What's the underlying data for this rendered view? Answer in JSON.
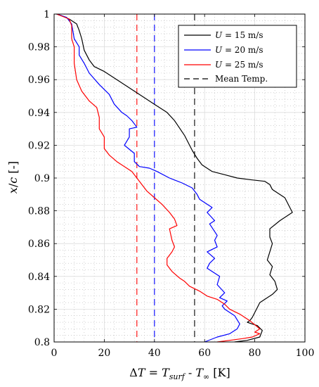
{
  "chart_data": {
    "type": "line",
    "xlabel": "ΔT = T_surf - T_∞ [K]",
    "ylabel": "x/c [-]",
    "xlim": [
      0,
      100
    ],
    "ylim": [
      0.8,
      1.0
    ],
    "xticks": [
      0,
      20,
      40,
      60,
      80,
      100
    ],
    "yticks": [
      0.8,
      0.82,
      0.84,
      0.86,
      0.88,
      0.9,
      0.92,
      0.94,
      0.96,
      0.98,
      1.0
    ],
    "xtick_labels": [
      "0",
      "20",
      "40",
      "60",
      "80",
      "100"
    ],
    "ytick_labels": [
      "0.8",
      "0.82",
      "0.84",
      "0.86",
      "0.88",
      "0.9",
      "0.92",
      "0.94",
      "0.96",
      "0.98",
      "1"
    ],
    "grid": true,
    "minor_grid": true,
    "legend_position": "top-right",
    "series": [
      {
        "name": "U = 15 m/s",
        "color": "#000000",
        "points": [
          [
            1,
            1.0
          ],
          [
            3,
            0.999
          ],
          [
            6,
            0.997
          ],
          [
            9,
            0.994
          ],
          [
            10,
            0.99
          ],
          [
            11,
            0.985
          ],
          [
            12,
            0.978
          ],
          [
            14,
            0.972
          ],
          [
            16,
            0.968
          ],
          [
            20,
            0.965
          ],
          [
            25,
            0.96
          ],
          [
            30,
            0.955
          ],
          [
            35,
            0.95
          ],
          [
            40,
            0.945
          ],
          [
            45,
            0.94
          ],
          [
            48,
            0.935
          ],
          [
            52,
            0.926
          ],
          [
            55,
            0.917
          ],
          [
            57,
            0.912
          ],
          [
            59,
            0.908
          ],
          [
            63,
            0.904
          ],
          [
            68,
            0.902
          ],
          [
            73,
            0.9
          ],
          [
            78,
            0.899
          ],
          [
            84,
            0.898
          ],
          [
            86,
            0.896
          ],
          [
            87,
            0.893
          ],
          [
            89,
            0.891
          ],
          [
            92,
            0.888
          ],
          [
            95,
            0.879
          ],
          [
            90,
            0.874
          ],
          [
            86,
            0.869
          ],
          [
            86,
            0.864
          ],
          [
            87,
            0.86
          ],
          [
            86,
            0.855
          ],
          [
            85,
            0.85
          ],
          [
            87,
            0.846
          ],
          [
            86,
            0.841
          ],
          [
            88,
            0.837
          ],
          [
            89,
            0.832
          ],
          [
            87,
            0.829
          ],
          [
            84,
            0.826
          ],
          [
            82,
            0.824
          ],
          [
            81,
            0.821
          ],
          [
            80,
            0.818
          ],
          [
            79,
            0.815
          ],
          [
            78,
            0.813
          ],
          [
            77,
            0.812
          ],
          [
            79,
            0.811
          ],
          [
            81,
            0.81
          ],
          [
            83,
            0.807
          ],
          [
            82,
            0.803
          ],
          [
            77,
            0.801
          ],
          [
            72,
            0.8
          ]
        ]
      },
      {
        "name": "U = 20 m/s",
        "color": "#0000ff",
        "points": [
          [
            1,
            1.0
          ],
          [
            5,
            0.998
          ],
          [
            7,
            0.994
          ],
          [
            8,
            0.985
          ],
          [
            10,
            0.98
          ],
          [
            10,
            0.975
          ],
          [
            12,
            0.97
          ],
          [
            14,
            0.964
          ],
          [
            18,
            0.957
          ],
          [
            22,
            0.951
          ],
          [
            24,
            0.945
          ],
          [
            27,
            0.94
          ],
          [
            29,
            0.938
          ],
          [
            31,
            0.935
          ],
          [
            33,
            0.931
          ],
          [
            30,
            0.93
          ],
          [
            30,
            0.925
          ],
          [
            28,
            0.92
          ],
          [
            32,
            0.915
          ],
          [
            32,
            0.91
          ],
          [
            34,
            0.907
          ],
          [
            38,
            0.906
          ],
          [
            41,
            0.904
          ],
          [
            46,
            0.9
          ],
          [
            51,
            0.897
          ],
          [
            55,
            0.894
          ],
          [
            57,
            0.89
          ],
          [
            58,
            0.887
          ],
          [
            61,
            0.884
          ],
          [
            63,
            0.882
          ],
          [
            61,
            0.879
          ],
          [
            64,
            0.874
          ],
          [
            62,
            0.872
          ],
          [
            65,
            0.865
          ],
          [
            64,
            0.862
          ],
          [
            65,
            0.858
          ],
          [
            61,
            0.855
          ],
          [
            64,
            0.851
          ],
          [
            62,
            0.848
          ],
          [
            61,
            0.845
          ],
          [
            66,
            0.84
          ],
          [
            65,
            0.835
          ],
          [
            68,
            0.83
          ],
          [
            66,
            0.827
          ],
          [
            69,
            0.825
          ],
          [
            67,
            0.822
          ],
          [
            68,
            0.82
          ],
          [
            72,
            0.816
          ],
          [
            74,
            0.811
          ],
          [
            73,
            0.808
          ],
          [
            70,
            0.805
          ],
          [
            65,
            0.803
          ],
          [
            60,
            0.8
          ]
        ]
      },
      {
        "name": "U = 25 m/s",
        "color": "#ff0000",
        "points": [
          [
            1,
            1.0
          ],
          [
            6,
            0.997
          ],
          [
            7,
            0.993
          ],
          [
            7,
            0.985
          ],
          [
            8,
            0.98
          ],
          [
            8,
            0.97
          ],
          [
            9,
            0.96
          ],
          [
            11,
            0.953
          ],
          [
            14,
            0.947
          ],
          [
            17,
            0.943
          ],
          [
            18,
            0.937
          ],
          [
            18,
            0.93
          ],
          [
            20,
            0.925
          ],
          [
            20,
            0.918
          ],
          [
            22,
            0.914
          ],
          [
            25,
            0.91
          ],
          [
            28,
            0.907
          ],
          [
            31,
            0.904
          ],
          [
            33,
            0.9
          ],
          [
            35,
            0.896
          ],
          [
            37,
            0.892
          ],
          [
            40,
            0.888
          ],
          [
            43,
            0.884
          ],
          [
            46,
            0.879
          ],
          [
            48,
            0.875
          ],
          [
            49,
            0.871
          ],
          [
            46,
            0.869
          ],
          [
            47,
            0.862
          ],
          [
            48,
            0.858
          ],
          [
            47,
            0.855
          ],
          [
            45,
            0.851
          ],
          [
            45,
            0.847
          ],
          [
            47,
            0.843
          ],
          [
            50,
            0.839
          ],
          [
            52,
            0.837
          ],
          [
            54,
            0.834
          ],
          [
            58,
            0.831
          ],
          [
            61,
            0.828
          ],
          [
            65,
            0.826
          ],
          [
            68,
            0.823
          ],
          [
            70,
            0.82
          ],
          [
            74,
            0.817
          ],
          [
            78,
            0.813
          ],
          [
            82,
            0.808
          ],
          [
            80,
            0.806
          ],
          [
            82,
            0.805
          ],
          [
            79,
            0.803
          ],
          [
            75,
            0.802
          ],
          [
            70,
            0.801
          ],
          [
            65,
            0.8
          ]
        ]
      }
    ],
    "mean_temperatures": [
      {
        "value": 56,
        "color": "#000000"
      },
      {
        "value": 40,
        "color": "#0000ff"
      },
      {
        "value": 33,
        "color": "#ff0000"
      }
    ],
    "legend": [
      {
        "label": "U = 15 m/s",
        "color": "#000000",
        "style": "solid"
      },
      {
        "label": "U = 20 m/s",
        "color": "#0000ff",
        "style": "solid"
      },
      {
        "label": "U = 25 m/s",
        "color": "#ff0000",
        "style": "solid"
      },
      {
        "label": "Mean Temp.",
        "color": "#000000",
        "style": "dashed"
      }
    ]
  }
}
